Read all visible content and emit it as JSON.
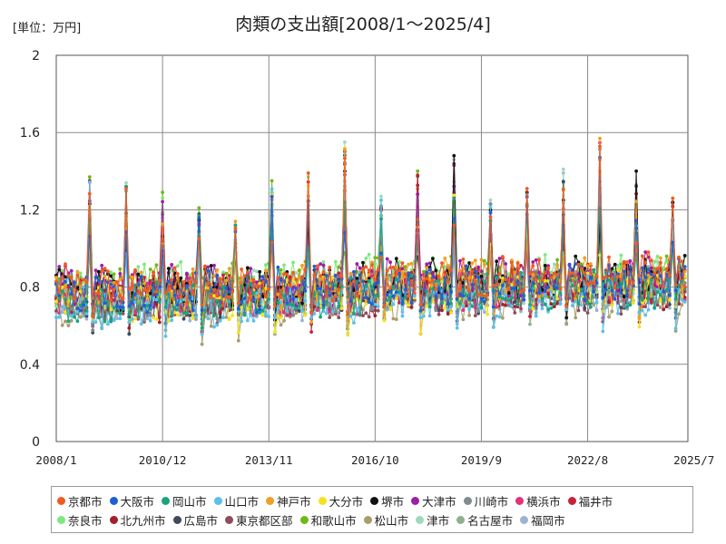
{
  "unit_label": "[単位：万円]",
  "chart_data": {
    "type": "line",
    "title": "肉類の支出額[2008/1～2025/4]",
    "xlabel": "",
    "ylabel": "",
    "ylim": [
      0,
      2
    ],
    "yticks": [
      "0",
      "0.4",
      "0.8",
      "1.2",
      "1.6",
      "2"
    ],
    "xticks": [
      "2008/1",
      "2010/12",
      "2013/11",
      "2016/10",
      "2019/9",
      "2022/8",
      "2025/7"
    ],
    "x_start": "2008/1",
    "x_end": "2025/7",
    "months": 208,
    "grid": true,
    "markers": true,
    "legend_position": "bottom",
    "series": [
      {
        "name": "京都市",
        "color": "#f25a22",
        "level": 0.8
      },
      {
        "name": "大阪市",
        "color": "#1f5fd6",
        "level": 0.77
      },
      {
        "name": "岡山市",
        "color": "#1aa37f",
        "level": 0.73
      },
      {
        "name": "山口市",
        "color": "#5bc0eb",
        "level": 0.7
      },
      {
        "name": "神戸市",
        "color": "#f0a020",
        "level": 0.79
      },
      {
        "name": "大分市",
        "color": "#f5e21c",
        "level": 0.72
      },
      {
        "name": "堺市",
        "color": "#111111",
        "level": 0.79
      },
      {
        "name": "大津市",
        "color": "#9c1fa8",
        "level": 0.8
      },
      {
        "name": "川崎市",
        "color": "#7f8c8d",
        "level": 0.74
      },
      {
        "name": "横浜市",
        "color": "#e0337a",
        "level": 0.74
      },
      {
        "name": "福井市",
        "color": "#c8213a",
        "level": 0.75
      },
      {
        "name": "奈良市",
        "color": "#7ee87e",
        "level": 0.81
      },
      {
        "name": "北九州市",
        "color": "#a3202d",
        "level": 0.72
      },
      {
        "name": "広島市",
        "color": "#3e4a58",
        "level": 0.73
      },
      {
        "name": "東京都区部",
        "color": "#8e4d5e",
        "level": 0.71
      },
      {
        "name": "和歌山市",
        "color": "#6fb818",
        "level": 0.8
      },
      {
        "name": "松山市",
        "color": "#a89d6e",
        "level": 0.7
      },
      {
        "name": "津市",
        "color": "#9fd8be",
        "level": 0.76
      },
      {
        "name": "名古屋市",
        "color": "#8fb08f",
        "level": 0.74
      },
      {
        "name": "福岡市",
        "color": "#9ab3cf",
        "level": 0.72
      }
    ],
    "peaks": [
      {
        "date": "2008/12",
        "max": 1.37,
        "series": "和歌山市"
      },
      {
        "date": "2009/12",
        "max": 1.34,
        "series": "津市"
      },
      {
        "date": "2010/12",
        "max": 1.29,
        "series": "和歌山市"
      },
      {
        "date": "2011/12",
        "max": 1.21,
        "series": "和歌山市"
      },
      {
        "date": "2012/12",
        "max": 1.14,
        "series": "神戸市"
      },
      {
        "date": "2013/12",
        "max": 1.35,
        "series": "和歌山市"
      },
      {
        "date": "2014/12",
        "max": 1.39,
        "series": "京都市"
      },
      {
        "date": "2015/12",
        "max": 1.55,
        "series": "津市"
      },
      {
        "date": "2016/12",
        "max": 1.27,
        "series": "津市"
      },
      {
        "date": "2017/12",
        "max": 1.4,
        "series": "和歌山市"
      },
      {
        "date": "2018/12",
        "max": 1.48,
        "series": "堺市"
      },
      {
        "date": "2019/12",
        "max": 1.25,
        "series": "津市"
      },
      {
        "date": "2020/12",
        "max": 1.31,
        "series": "京都市"
      },
      {
        "date": "2021/12",
        "max": 1.41,
        "series": "津市"
      },
      {
        "date": "2022/12",
        "max": 1.57,
        "series": "神戸市"
      },
      {
        "date": "2023/12",
        "max": 1.4,
        "series": "堺市"
      },
      {
        "date": "2024/12",
        "max": 1.26,
        "series": "京都市"
      }
    ]
  }
}
